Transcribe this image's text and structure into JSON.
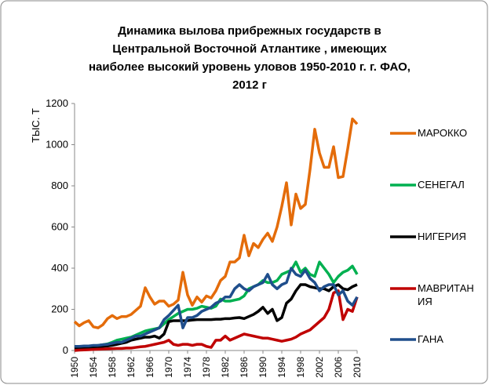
{
  "chart_data": {
    "type": "line",
    "title": [
      "Динамика вылова  прибрежных  государств в",
      "Центральной Восточной Атлантике , имеющих",
      "наиболее высокий уровень уловов 1950-2010 г. г. ФАО,",
      "2012 г"
    ],
    "ylabel": "ТЫС. Т",
    "x": [
      1950,
      1951,
      1952,
      1953,
      1954,
      1955,
      1956,
      1957,
      1958,
      1959,
      1960,
      1961,
      1962,
      1963,
      1964,
      1965,
      1966,
      1967,
      1968,
      1969,
      1970,
      1971,
      1972,
      1973,
      1974,
      1975,
      1976,
      1977,
      1978,
      1979,
      1980,
      1981,
      1982,
      1983,
      1984,
      1985,
      1986,
      1987,
      1988,
      1989,
      1990,
      1991,
      1992,
      1993,
      1994,
      1995,
      1996,
      1997,
      1998,
      1999,
      2000,
      2001,
      2002,
      2003,
      2004,
      2005,
      2006,
      2007,
      2008,
      2009,
      2010
    ],
    "xlim": [
      1950,
      2010
    ],
    "xticks": [
      1950,
      1954,
      1958,
      1962,
      1966,
      1970,
      1974,
      1978,
      1982,
      1986,
      1990,
      1994,
      1998,
      2002,
      2006,
      2010
    ],
    "ylim": [
      0,
      1200
    ],
    "yticks": [
      0,
      200,
      400,
      600,
      800,
      1000,
      1200
    ],
    "grid": false,
    "legend": "right",
    "series": [
      {
        "name": "МАРОККО",
        "color": "#e46c0a",
        "values": [
          140,
          120,
          135,
          145,
          115,
          110,
          125,
          155,
          170,
          155,
          165,
          165,
          175,
          195,
          215,
          305,
          260,
          225,
          240,
          240,
          215,
          225,
          245,
          380,
          270,
          220,
          260,
          235,
          265,
          255,
          290,
          340,
          360,
          430,
          430,
          450,
          560,
          460,
          520,
          500,
          540,
          570,
          530,
          600,
          700,
          815,
          610,
          760,
          690,
          710,
          880,
          1075,
          960,
          890,
          890,
          990,
          840,
          845,
          980,
          1125,
          1100
        ]
      },
      {
        "name": "СЕНЕГАЛ",
        "color": "#00b050",
        "values": [
          15,
          17,
          18,
          20,
          22,
          25,
          28,
          32,
          40,
          50,
          55,
          60,
          65,
          75,
          85,
          95,
          100,
          105,
          110,
          130,
          150,
          165,
          180,
          190,
          200,
          200,
          205,
          215,
          210,
          205,
          215,
          250,
          240,
          240,
          245,
          250,
          265,
          300,
          310,
          320,
          340,
          330,
          330,
          340,
          370,
          380,
          390,
          430,
          380,
          400,
          370,
          360,
          430,
          400,
          370,
          330,
          360,
          380,
          390,
          410,
          370
        ]
      },
      {
        "name": "НИГЕРИЯ",
        "color": "#000000",
        "values": [
          10,
          12,
          14,
          15,
          17,
          18,
          20,
          22,
          25,
          30,
          35,
          40,
          50,
          55,
          60,
          65,
          65,
          70,
          60,
          80,
          140,
          145,
          145,
          145,
          145,
          148,
          150,
          150,
          150,
          150,
          152,
          152,
          155,
          155,
          158,
          160,
          155,
          165,
          175,
          190,
          210,
          180,
          200,
          145,
          160,
          230,
          250,
          290,
          320,
          320,
          310,
          305,
          300,
          300,
          290,
          310,
          320,
          300,
          295,
          310,
          320
        ]
      },
      {
        "name": "МАВРИТАНИЯ",
        "color": "#c00000",
        "values": [
          0,
          2,
          3,
          4,
          5,
          6,
          7,
          8,
          9,
          10,
          10,
          12,
          12,
          15,
          18,
          20,
          25,
          30,
          35,
          40,
          50,
          30,
          25,
          30,
          30,
          25,
          30,
          30,
          20,
          15,
          50,
          50,
          70,
          50,
          60,
          70,
          80,
          75,
          70,
          65,
          60,
          60,
          55,
          50,
          45,
          50,
          55,
          65,
          80,
          90,
          100,
          120,
          140,
          160,
          200,
          280,
          290,
          150,
          200,
          190,
          260
        ]
      },
      {
        "name": "ГАНА",
        "color": "#1f4e8c",
        "values": [
          20,
          20,
          22,
          22,
          25,
          25,
          28,
          30,
          35,
          40,
          40,
          50,
          60,
          70,
          70,
          80,
          90,
          100,
          110,
          150,
          170,
          195,
          220,
          110,
          160,
          160,
          170,
          190,
          200,
          210,
          230,
          240,
          260,
          260,
          300,
          320,
          300,
          290,
          310,
          320,
          330,
          370,
          320,
          300,
          320,
          330,
          400,
          370,
          360,
          390,
          350,
          330,
          290,
          310,
          320,
          320,
          270,
          290,
          240,
          220,
          260
        ]
      }
    ]
  }
}
